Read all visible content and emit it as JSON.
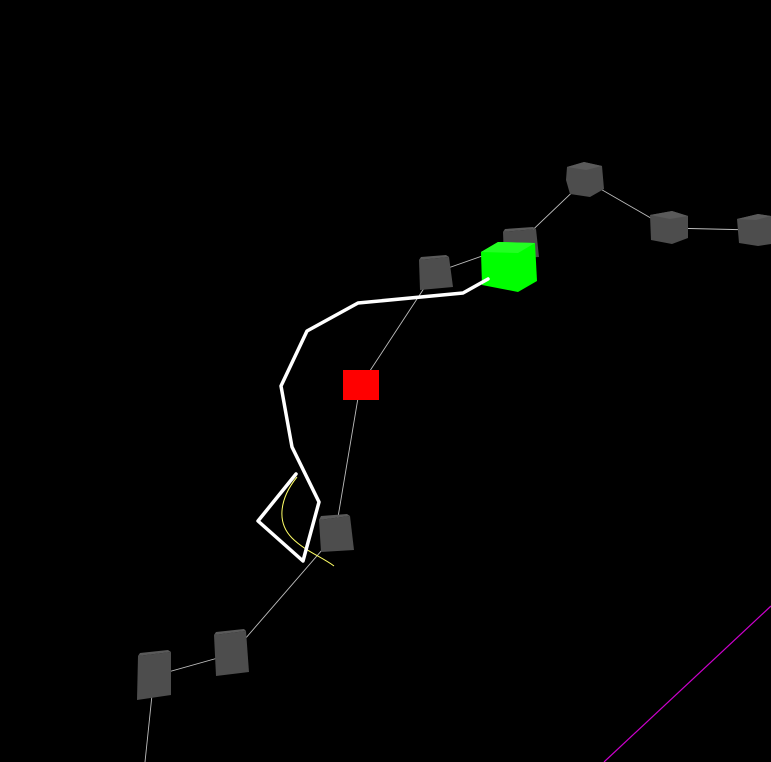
{
  "scene": {
    "background_color": "#000000",
    "colors": {
      "waypoint": "#4a4a4a",
      "waypoint_edge": "#3a3a3a",
      "goal_marker": "#00ff00",
      "current_marker": "#ff0000",
      "agent_path": "#ffffff",
      "guide_connector": "#bdbdbd",
      "predicted_arc": "#ffff66",
      "boundary_line": "#cc00cc"
    },
    "waypoint_count": 9,
    "elements": [
      "waypoint-cube",
      "goal-cube",
      "current-target-cube",
      "agent-trajectory",
      "predicted-arc",
      "boundary-line"
    ]
  }
}
